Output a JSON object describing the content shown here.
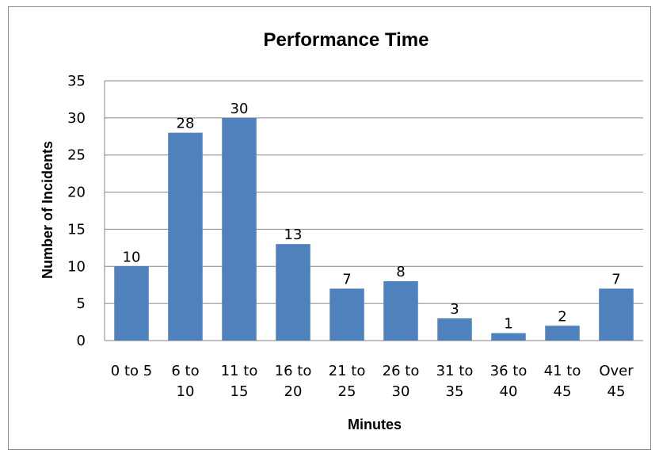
{
  "chart_data": {
    "type": "bar",
    "title": "Performance Time",
    "xlabel": "Minutes",
    "ylabel": "Number of Incidents",
    "categories": [
      [
        "0 to 5"
      ],
      [
        "6 to",
        "10"
      ],
      [
        "11 to",
        "15"
      ],
      [
        "16 to",
        "20"
      ],
      [
        "21 to",
        "25"
      ],
      [
        "26 to",
        "30"
      ],
      [
        "31 to",
        "35"
      ],
      [
        "36 to",
        "40"
      ],
      [
        "41 to",
        "45"
      ],
      [
        "Over",
        "45"
      ]
    ],
    "values": [
      10,
      28,
      30,
      13,
      7,
      8,
      3,
      1,
      2,
      7
    ],
    "ylim": [
      0,
      35
    ],
    "yticks": [
      0,
      5,
      10,
      15,
      20,
      25,
      30,
      35
    ],
    "grid": true,
    "legend": "none",
    "bar_color": "#4f81bd",
    "grid_color": "#868686"
  }
}
